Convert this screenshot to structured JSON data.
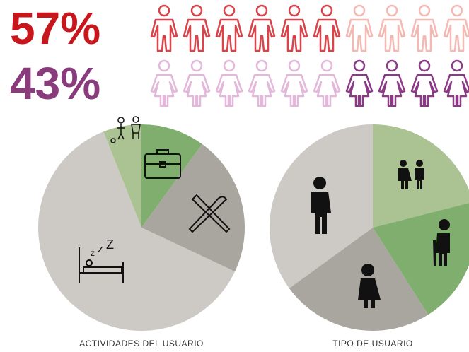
{
  "chart_data": [
    {
      "type": "pictogram",
      "values": [
        57,
        43
      ],
      "value_labels": [
        "57%",
        "43%"
      ],
      "colors": [
        "#c8161d",
        "#8a3b7c"
      ],
      "icon_colors": [
        [
          "#d9434a",
          "#f3b9b2"
        ],
        [
          "#8b3a86",
          "#e3b8da"
        ]
      ],
      "align": [
        "left",
        "right"
      ],
      "icons": 10
    },
    {
      "type": "pie",
      "title": "ACTIVIDADES DEL USUARIO",
      "values": [
        10,
        22,
        62,
        6
      ],
      "colors": [
        "#80ae6f",
        "#a9a59f",
        "#cdcac5",
        "#abc392"
      ]
    },
    {
      "type": "pie",
      "title": "TIPO DE USUARIO",
      "values": [
        21,
        20,
        24,
        35
      ],
      "colors": [
        "#abc392",
        "#80ae6f",
        "#a9a59f",
        "#cdcac5"
      ]
    }
  ]
}
